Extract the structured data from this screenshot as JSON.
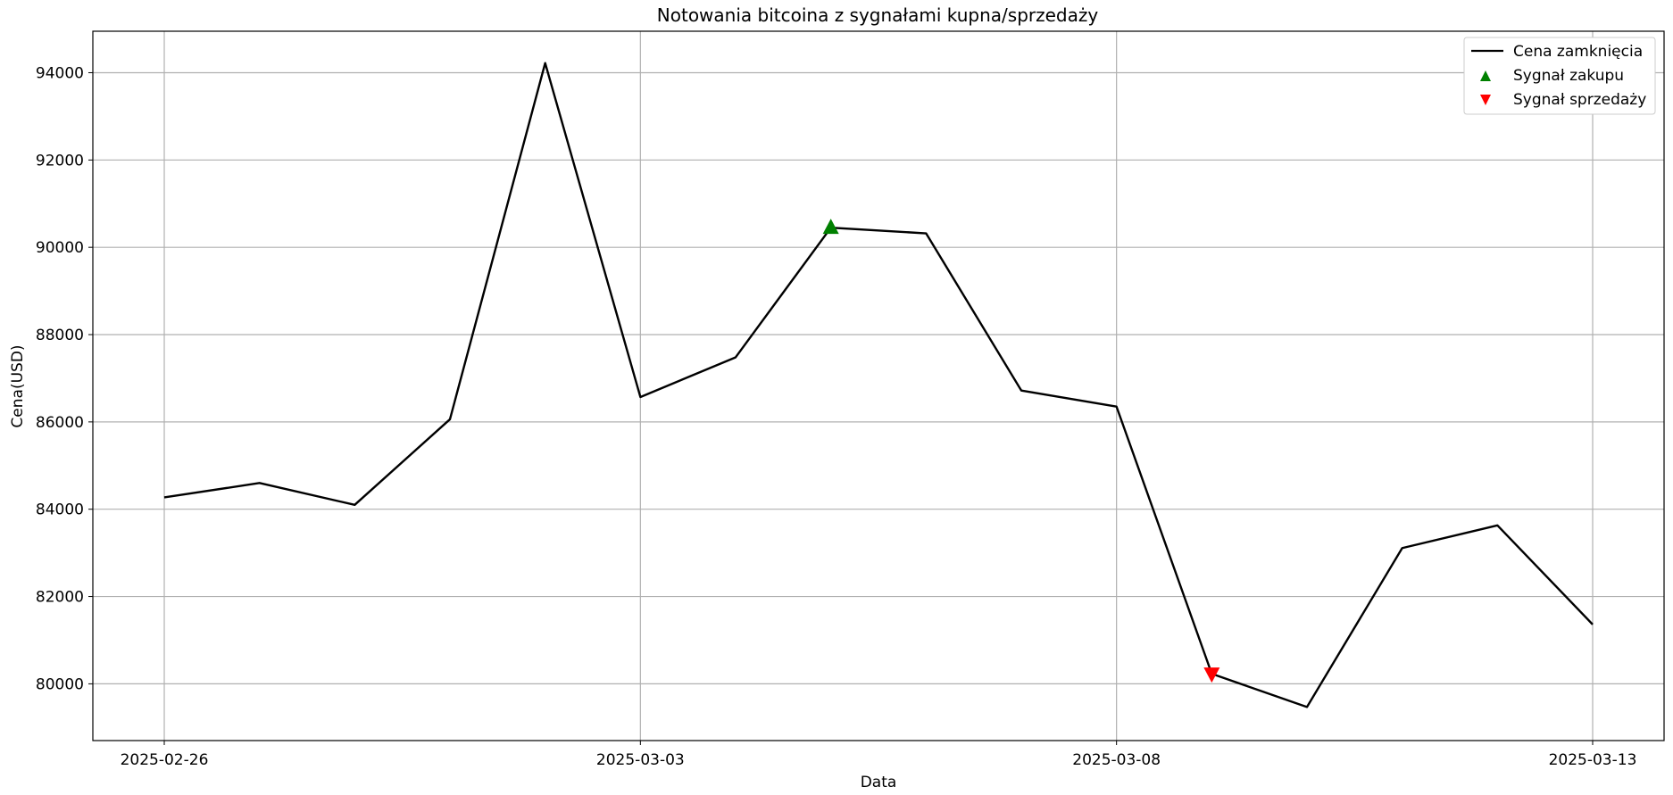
{
  "chart_data": {
    "type": "line",
    "title": "Notowania bitcoina z sygnałami kupna/sprzedaży",
    "xlabel": "Data",
    "ylabel": "Cena(USD)",
    "x": [
      "2025-02-26",
      "2025-02-27",
      "2025-02-28",
      "2025-03-01",
      "2025-03-02",
      "2025-03-03",
      "2025-03-04",
      "2025-03-05",
      "2025-03-06",
      "2025-03-07",
      "2025-03-08",
      "2025-03-09",
      "2025-03-10",
      "2025-03-11",
      "2025-03-12",
      "2025-03-13"
    ],
    "xticks": [
      "2025-02-26",
      "2025-03-03",
      "2025-03-08",
      "2025-03-13"
    ],
    "ylim": [
      78700,
      94950
    ],
    "yticks": [
      80000,
      82000,
      84000,
      86000,
      88000,
      90000,
      92000,
      94000
    ],
    "grid": true,
    "legend_position": "top-right",
    "series": [
      {
        "name": "Cena zamknięcia",
        "color": "#000000",
        "values": [
          84270,
          84600,
          84100,
          86060,
          94220,
          86570,
          87480,
          90450,
          90320,
          86720,
          86350,
          80230,
          79470,
          83110,
          83630,
          81360
        ]
      }
    ],
    "buy_signals": {
      "name": "Sygnał zakupu",
      "color": "#008000",
      "points": [
        {
          "x": "2025-03-05",
          "y": 90450
        }
      ]
    },
    "sell_signals": {
      "name": "Sygnał sprzedaży",
      "color": "#ff0000",
      "points": [
        {
          "x": "2025-03-09",
          "y": 80230
        }
      ]
    }
  }
}
